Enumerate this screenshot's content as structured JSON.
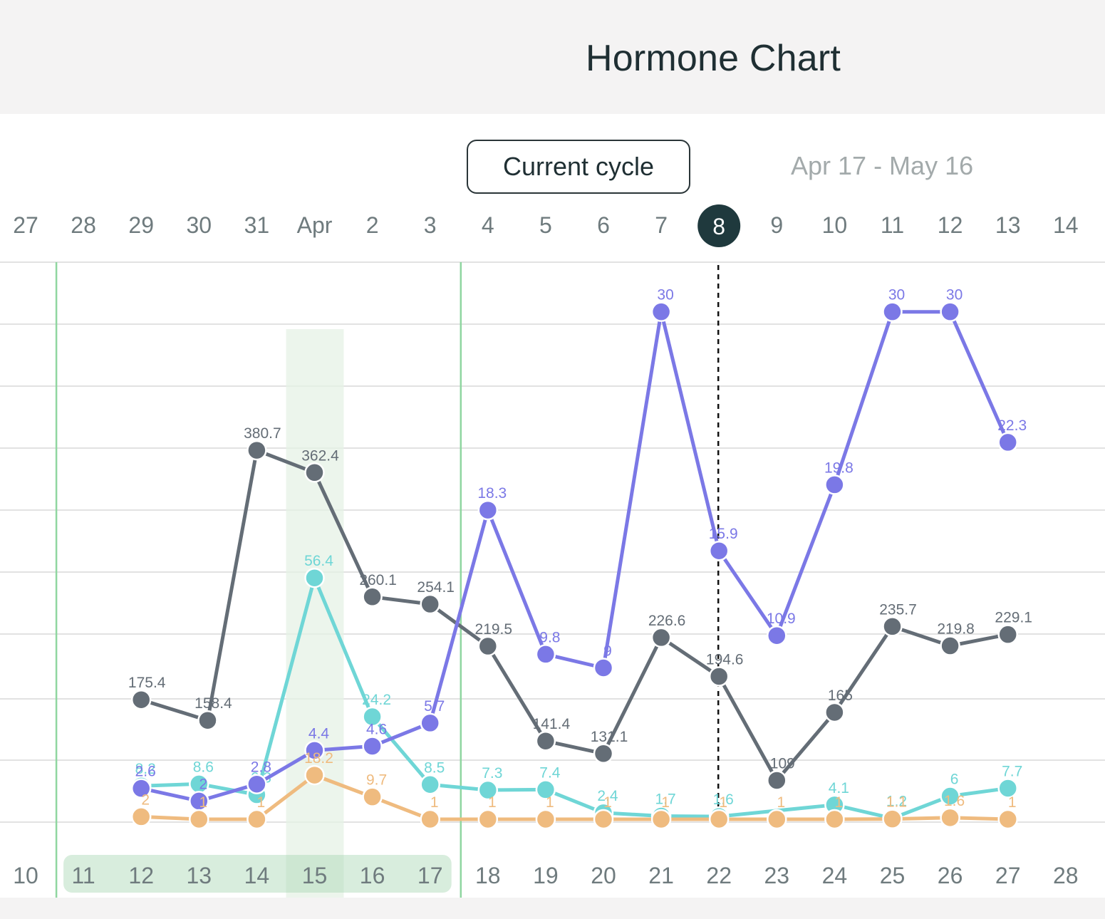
{
  "header": {
    "title": "Hormone Chart"
  },
  "cycle_selector": {
    "button_label": "Current cycle",
    "date_range": "Apr 17 - May 16"
  },
  "colors": {
    "lh": "#7b78e6",
    "e3g": "#6fd6d6",
    "pdg": "#efbb7f",
    "fsh": "#646d76",
    "today_badge": "#1f393d",
    "period_band": "#a9d7b4",
    "ovulation_highlight": "#e6f2e6",
    "cycle_line": "#8fd6a0",
    "grid": "#d8d8d8"
  },
  "chart_data": {
    "type": "line",
    "title": "Hormone Chart",
    "top_dates": [
      "27",
      "28",
      "29",
      "30",
      "31",
      "Apr",
      "2",
      "3",
      "4",
      "5",
      "6",
      "7",
      "8",
      "9",
      "10",
      "11",
      "12",
      "13",
      "14"
    ],
    "today_label": "8",
    "bottom_days": [
      "10",
      "11",
      "12",
      "13",
      "14",
      "15",
      "16",
      "17",
      "18",
      "19",
      "20",
      "21",
      "22",
      "23",
      "24",
      "25",
      "26",
      "27",
      "28"
    ],
    "period_days": [
      "11",
      "12",
      "13",
      "14",
      "15",
      "16",
      "17"
    ],
    "highlight_day": "15",
    "cycle_start_days": [
      "11",
      "18"
    ],
    "today_marker_day": "22",
    "grid": true,
    "series": [
      {
        "key": "fsh",
        "points": [
          {
            "day": 12,
            "value": 175.4,
            "label": "175.4"
          },
          {
            "day": 13.15,
            "value": 158.4,
            "label": "158.4"
          },
          {
            "day": 14,
            "value": 380.7,
            "label": "380.7"
          },
          {
            "day": 15,
            "value": 362.4,
            "label": "362.4"
          },
          {
            "day": 16,
            "value": 260.1,
            "label": "260.1"
          },
          {
            "day": 17,
            "value": 254.1,
            "label": "254.1"
          },
          {
            "day": 18,
            "value": 219.5,
            "label": "219.5"
          },
          {
            "day": 19,
            "value": 141.4,
            "label": "141.4"
          },
          {
            "day": 20,
            "value": 131.1,
            "label": "131.1"
          },
          {
            "day": 21,
            "value": 226.6,
            "label": "226.6"
          },
          {
            "day": 22,
            "value": 194.6,
            "label": "194.6"
          },
          {
            "day": 23,
            "value": 109,
            "label": "109"
          },
          {
            "day": 24,
            "value": 165,
            "label": "165"
          },
          {
            "day": 25,
            "value": 235.7,
            "label": "235.7"
          },
          {
            "day": 26,
            "value": 219.8,
            "label": "219.8"
          },
          {
            "day": 27,
            "value": 229.1,
            "label": "229.1"
          }
        ]
      },
      {
        "key": "e3g",
        "points": [
          {
            "day": 12,
            "value": 8.2,
            "label": "8.2"
          },
          {
            "day": 13,
            "value": 8.6,
            "label": "8.6"
          },
          {
            "day": 14,
            "value": 6.3,
            "label": "6.3"
          },
          {
            "day": 15,
            "value": 56.4,
            "label": "56.4"
          },
          {
            "day": 16,
            "value": 24.2,
            "label": "24.2"
          },
          {
            "day": 17,
            "value": 8.5,
            "label": "8.5"
          },
          {
            "day": 18,
            "value": 7.3,
            "label": "7.3"
          },
          {
            "day": 19,
            "value": 7.4,
            "label": "7.4"
          },
          {
            "day": 20,
            "value": 2.4,
            "label": "2.4"
          },
          {
            "day": 21,
            "value": 1.7,
            "label": "1.7"
          },
          {
            "day": 22,
            "value": 1.6,
            "label": "1.6"
          },
          {
            "day": 24,
            "value": 4.1,
            "label": "4.1"
          },
          {
            "day": 25,
            "value": 1.2,
            "label": "1.2"
          },
          {
            "day": 26,
            "value": 6,
            "label": "6"
          },
          {
            "day": 27,
            "value": 7.7,
            "label": "7.7"
          }
        ]
      },
      {
        "key": "lh",
        "points": [
          {
            "day": 12,
            "value": 2.6,
            "label": "2.6"
          },
          {
            "day": 13,
            "value": 2,
            "label": "2"
          },
          {
            "day": 14,
            "value": 2.8,
            "label": "2.8"
          },
          {
            "day": 15,
            "value": 4.4,
            "label": "4.4"
          },
          {
            "day": 16,
            "value": 4.6,
            "label": "4.6"
          },
          {
            "day": 17,
            "value": 5.7,
            "label": "5.7"
          },
          {
            "day": 18,
            "value": 18.3,
            "label": "18.3"
          },
          {
            "day": 19,
            "value": 9.8,
            "label": "9.8"
          },
          {
            "day": 20,
            "value": 9,
            "label": "9"
          },
          {
            "day": 21,
            "value": 30,
            "label": "30"
          },
          {
            "day": 22,
            "value": 15.9,
            "label": "15.9"
          },
          {
            "day": 23,
            "value": 10.9,
            "label": "10.9"
          },
          {
            "day": 24,
            "value": 19.8,
            "label": "19.8"
          },
          {
            "day": 25,
            "value": 30,
            "label": "30"
          },
          {
            "day": 26,
            "value": 30,
            "label": "30"
          },
          {
            "day": 27,
            "value": 22.3,
            "label": "22.3"
          }
        ]
      },
      {
        "key": "pdg",
        "points": [
          {
            "day": 12,
            "value": 2,
            "label": "2"
          },
          {
            "day": 13,
            "value": 1,
            "label": "1"
          },
          {
            "day": 14,
            "value": 1,
            "label": "1"
          },
          {
            "day": 15,
            "value": 18.2,
            "label": "18.2"
          },
          {
            "day": 16,
            "value": 9.7,
            "label": "9.7"
          },
          {
            "day": 17,
            "value": 1,
            "label": "1"
          },
          {
            "day": 18,
            "value": 1,
            "label": "1"
          },
          {
            "day": 19,
            "value": 1,
            "label": "1"
          },
          {
            "day": 20,
            "value": 1,
            "label": "1"
          },
          {
            "day": 21,
            "value": 1,
            "label": "1"
          },
          {
            "day": 22,
            "value": 1,
            "label": "1"
          },
          {
            "day": 23,
            "value": 1,
            "label": "1"
          },
          {
            "day": 24,
            "value": 1,
            "label": "1"
          },
          {
            "day": 25,
            "value": 1.1,
            "label": "1.1"
          },
          {
            "day": 26,
            "value": 1.6,
            "label": "1.6"
          },
          {
            "day": 27,
            "value": 1,
            "label": "1"
          }
        ]
      }
    ]
  }
}
